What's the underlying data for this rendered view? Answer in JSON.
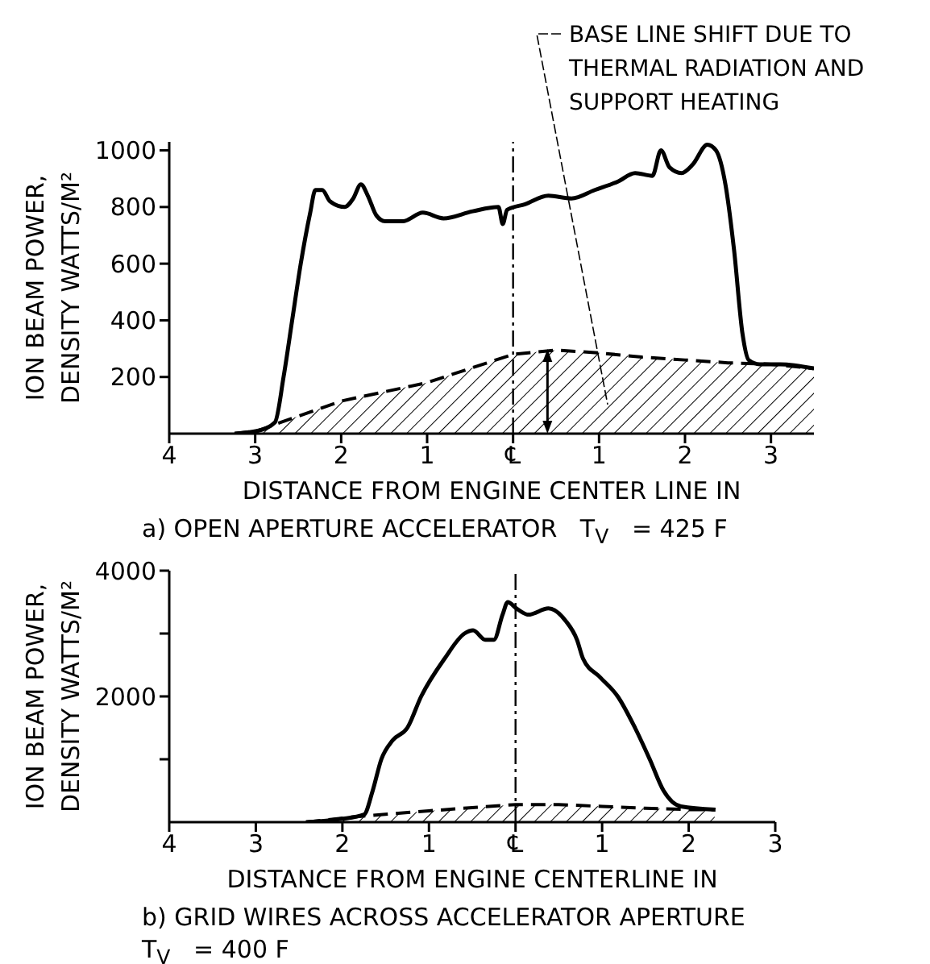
{
  "chart_data": [
    {
      "type": "line",
      "xlabel": "DISTANCE FROM ENGINE CENTER LINE  IN",
      "ylabel": "ION BEAM POWER, DENSITY WATTS/M²",
      "xlim": [
        -4,
        3.5
      ],
      "xticks": [
        {
          "value": -4,
          "label": "4"
        },
        {
          "value": -3,
          "label": "3"
        },
        {
          "value": -2,
          "label": "2"
        },
        {
          "value": -1,
          "label": "1"
        },
        {
          "value": 0,
          "label": "℄"
        },
        1,
        2,
        3
      ],
      "ylim": [
        0,
        1030
      ],
      "yticks": [
        200,
        400,
        600,
        800,
        1000
      ],
      "ref_lines": [
        {
          "axis": "x",
          "value": 0,
          "line_style": "dashed"
        }
      ],
      "annotations": [
        "BASE LINE SHIFT DUE TO THERMAL RADIATION AND SUPPORT HEATING",
        "a) OPEN APERTURE ACCELERATOR   T$_{V}$   = 425 F"
      ],
      "series": [
        {
          "type": "line",
          "color": "#000000",
          "line_style": "solid",
          "x": [
            -3.24,
            -2.97,
            -2.77,
            -2.67,
            -2.57,
            -2.47,
            -2.36,
            -2.3,
            -2.22,
            -2.13,
            -1.96,
            -1.86,
            -1.77,
            -1.69,
            -1.59,
            -1.49,
            -1.28,
            -1.05,
            -0.81,
            -0.47,
            -0.17,
            -0.12,
            -0.07,
            0.14,
            0.41,
            0.68,
            0.95,
            1.22,
            1.42,
            1.62,
            1.72,
            1.82,
            1.96,
            2.09,
            2.26,
            2.36,
            2.47,
            2.57,
            2.67,
            2.74,
            2.87,
            3.11,
            3.5
          ],
          "values": [
            0,
            10,
            40,
            200,
            400,
            600,
            780,
            860,
            860,
            820,
            800,
            830,
            880,
            840,
            770,
            750,
            750,
            780,
            760,
            785,
            800,
            740,
            790,
            810,
            840,
            830,
            860,
            890,
            920,
            910,
            1000,
            940,
            920,
            950,
            1020,
            1000,
            880,
            650,
            350,
            260,
            245,
            245,
            230
          ]
        },
        {
          "type": "area",
          "color": "#000000",
          "line_style": "dashed",
          "x": [
            -3.24,
            -2.97,
            -2.7,
            -2,
            -1,
            -0.5,
            0,
            0.5,
            1,
            1.5,
            2,
            2.5,
            3,
            3.5
          ],
          "values": [
            0,
            10,
            40,
            115,
            180,
            230,
            280,
            295,
            285,
            270,
            260,
            250,
            245,
            230
          ]
        }
      ]
    },
    {
      "type": "line",
      "xlabel": "DISTANCE FROM ENGINE CENTERLINE  IN",
      "ylabel": "ION BEAM POWER, DENSITY WATTS/M²",
      "xlim": [
        -4,
        3
      ],
      "xticks": [
        {
          "value": -4,
          "label": "4"
        },
        {
          "value": -3,
          "label": "3"
        },
        {
          "value": -2,
          "label": "2"
        },
        {
          "value": -1,
          "label": "1"
        },
        {
          "value": 0,
          "label": "℄"
        },
        1,
        2,
        3
      ],
      "ylim": [
        0,
        4000
      ],
      "yticks": [
        {
          "value": 1000,
          "label": null
        },
        2000,
        {
          "value": 3000,
          "label": null
        },
        4000
      ],
      "ref_lines": [
        {
          "axis": "x",
          "value": 0,
          "line_style": "dashed"
        }
      ],
      "annotations": [
        "b) GRID WIRES ACROSS ACCELERATOR APERTURE",
        "T$_{V}$   = 400 F"
      ],
      "series": [
        {
          "type": "line",
          "color": "#000000",
          "line_style": "solid",
          "x": [
            -2.42,
            -2.02,
            -1.75,
            -1.65,
            -1.55,
            -1.42,
            -1.25,
            -1.09,
            -0.82,
            -0.59,
            -0.49,
            -0.35,
            -0.25,
            -0.15,
            -0.09,
            0.01,
            0.15,
            0.38,
            0.58,
            0.71,
            0.78,
            0.98,
            1.18,
            1.38,
            1.55,
            1.71,
            1.91,
            2.31
          ],
          "values": [
            0,
            50,
            120,
            500,
            1000,
            1300,
            1500,
            2000,
            2600,
            3000,
            3050,
            2900,
            2900,
            3300,
            3500,
            3400,
            3300,
            3400,
            3200,
            2900,
            2600,
            2300,
            2000,
            1500,
            1000,
            500,
            250,
            200
          ]
        },
        {
          "type": "area",
          "color": "#000000",
          "line_style": "dashed",
          "x": [
            -2.42,
            -1.9,
            -1,
            -0.5,
            0,
            0.5,
            1,
            1.5,
            2,
            2.3
          ],
          "values": [
            0,
            80,
            180,
            230,
            280,
            280,
            250,
            220,
            200,
            200
          ]
        }
      ]
    }
  ]
}
